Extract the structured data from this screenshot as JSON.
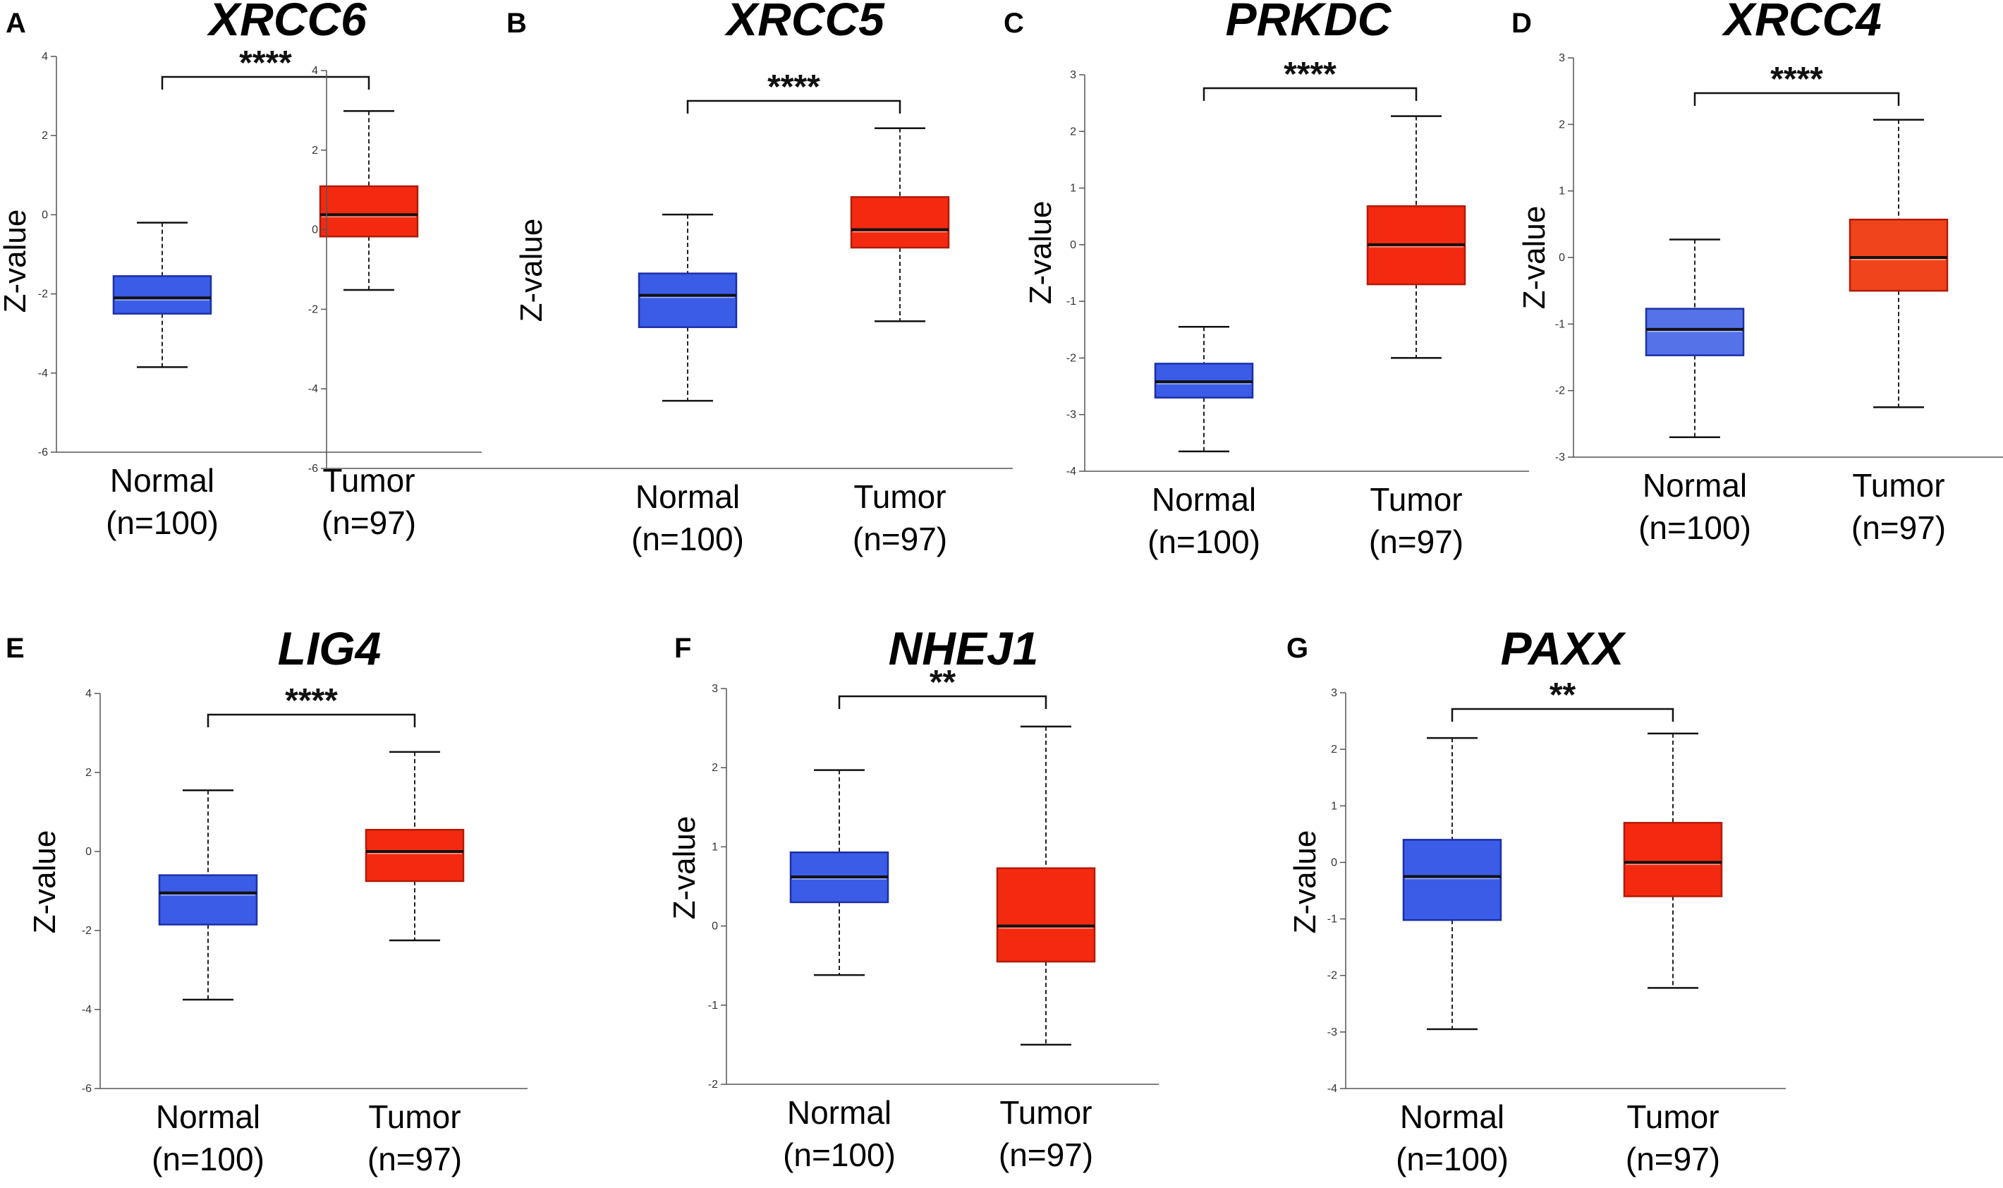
{
  "figure": {
    "ylabel": "Z-value",
    "normal_color": "#3a5ce6",
    "tumor_color": "#f42a10",
    "median_color": "#111111"
  },
  "chart_data": [
    {
      "panel": "A",
      "title": "XRCC6",
      "type": "box",
      "ylim": [
        -6,
        4
      ],
      "yticks": [
        "4",
        "2",
        "0",
        "-2",
        "-4",
        "-6"
      ],
      "ytick_values": [
        4,
        2,
        0,
        -2,
        -4,
        -6
      ],
      "significance": "****",
      "ylabel": "Z-value",
      "groups": [
        {
          "name": "Normal",
          "n_label": "(n=100)",
          "min": -3.85,
          "q1": -2.5,
          "median": -2.1,
          "q3": -1.55,
          "max": -0.2,
          "color": "#3a5ce6"
        },
        {
          "name": "Tumor",
          "n_label": "(n=97)",
          "min": -1.9,
          "q1": -0.55,
          "median": 0.0,
          "q3": 0.72,
          "max": 2.62,
          "color": "#f42a10"
        }
      ]
    },
    {
      "panel": "B",
      "title": "XRCC5",
      "type": "box",
      "ylim": [
        -6,
        4
      ],
      "yticks": [
        "4",
        "2",
        "0",
        "-2",
        "-4",
        "-6"
      ],
      "ytick_values": [
        4,
        2,
        0,
        -2,
        -4,
        -6
      ],
      "significance": "****",
      "ylabel": "Z-value",
      "groups": [
        {
          "name": "Normal",
          "n_label": "(n=100)",
          "min": -4.3,
          "q1": -2.45,
          "median": -1.65,
          "q3": -1.1,
          "max": 0.38,
          "color": "#3a5ce6"
        },
        {
          "name": "Tumor",
          "n_label": "(n=97)",
          "min": -2.3,
          "q1": -0.45,
          "median": 0.0,
          "q3": 0.82,
          "max": 2.55,
          "color": "#f42a10"
        }
      ]
    },
    {
      "panel": "C",
      "title": "PRKDC",
      "type": "box",
      "ylim": [
        -4,
        3
      ],
      "yticks": [
        "3",
        "2",
        "1",
        "0",
        "-1",
        "-2",
        "-3",
        "-4"
      ],
      "ytick_values": [
        3,
        2,
        1,
        0,
        -1,
        -2,
        -3,
        -4
      ],
      "significance": "****",
      "ylabel": "Z-value",
      "groups": [
        {
          "name": "Normal",
          "n_label": "(n=100)",
          "min": -3.65,
          "q1": -2.7,
          "median": -2.42,
          "q3": -2.1,
          "max": -1.45,
          "color": "#3a5ce6"
        },
        {
          "name": "Tumor",
          "n_label": "(n=97)",
          "min": -2.0,
          "q1": -0.7,
          "median": 0.0,
          "q3": 0.68,
          "max": 2.27,
          "color": "#f42a10"
        }
      ]
    },
    {
      "panel": "D",
      "title": "XRCC4",
      "type": "box",
      "ylim": [
        -3,
        3
      ],
      "yticks": [
        "3",
        "2",
        "1",
        "0",
        "-1",
        "-2",
        "-3"
      ],
      "ytick_values": [
        3,
        2,
        1,
        0,
        -1,
        -2,
        -3
      ],
      "significance": "****",
      "ylabel": "Z-value",
      "groups": [
        {
          "name": "Normal",
          "n_label": "(n=100)",
          "min": -2.7,
          "q1": -1.47,
          "median": -1.08,
          "q3": -0.77,
          "max": 0.27,
          "color": "#5572e8"
        },
        {
          "name": "Tumor",
          "n_label": "(n=97)",
          "min": -2.25,
          "q1": -0.5,
          "median": 0.0,
          "q3": 0.57,
          "max": 2.07,
          "color": "#f0441a"
        }
      ]
    },
    {
      "panel": "E",
      "title": "LIG4",
      "type": "box",
      "ylim": [
        -6,
        4
      ],
      "yticks": [
        "4",
        "2",
        "0",
        "-2",
        "-4",
        "-6"
      ],
      "ytick_values": [
        4,
        2,
        0,
        -2,
        -4,
        -6
      ],
      "significance": "****",
      "ylabel": "Z-value",
      "groups": [
        {
          "name": "Normal",
          "n_label": "(n=100)",
          "min": -3.75,
          "q1": -1.85,
          "median": -1.05,
          "q3": -0.6,
          "max": 1.55,
          "color": "#3a5ce6"
        },
        {
          "name": "Tumor",
          "n_label": "(n=97)",
          "min": -2.25,
          "q1": -0.75,
          "median": 0.0,
          "q3": 0.55,
          "max": 2.52,
          "color": "#f42a10"
        }
      ]
    },
    {
      "panel": "F",
      "title": "NHEJ1",
      "type": "box",
      "ylim": [
        -2,
        3
      ],
      "yticks": [
        "3",
        "2",
        "1",
        "0",
        "-1",
        "-2"
      ],
      "ytick_values": [
        3,
        2,
        1,
        0,
        -1,
        -2
      ],
      "significance": "**",
      "ylabel": "Z-value",
      "groups": [
        {
          "name": "Normal",
          "n_label": "(n=100)",
          "min": -0.62,
          "q1": 0.3,
          "median": 0.62,
          "q3": 0.93,
          "max": 1.97,
          "color": "#3a5ce6"
        },
        {
          "name": "Tumor",
          "n_label": "(n=97)",
          "min": -1.5,
          "q1": -0.45,
          "median": 0.0,
          "q3": 0.73,
          "max": 2.52,
          "color": "#f42a10"
        }
      ]
    },
    {
      "panel": "G",
      "title": "PAXX",
      "type": "box",
      "ylim": [
        -4,
        3
      ],
      "yticks": [
        "3",
        "2",
        "1",
        "0",
        "-1",
        "-2",
        "-3",
        "-4"
      ],
      "ytick_values": [
        3,
        2,
        1,
        0,
        -1,
        -2,
        -3,
        -4
      ],
      "significance": "**",
      "ylabel": "Z-value",
      "groups": [
        {
          "name": "Normal",
          "n_label": "(n=100)",
          "min": -2.95,
          "q1": -1.02,
          "median": -0.25,
          "q3": 0.4,
          "max": 2.2,
          "color": "#3a5ce6"
        },
        {
          "name": "Tumor",
          "n_label": "(n=97)",
          "min": -2.22,
          "q1": -0.6,
          "median": 0.0,
          "q3": 0.7,
          "max": 2.28,
          "color": "#f42a10"
        }
      ]
    }
  ]
}
